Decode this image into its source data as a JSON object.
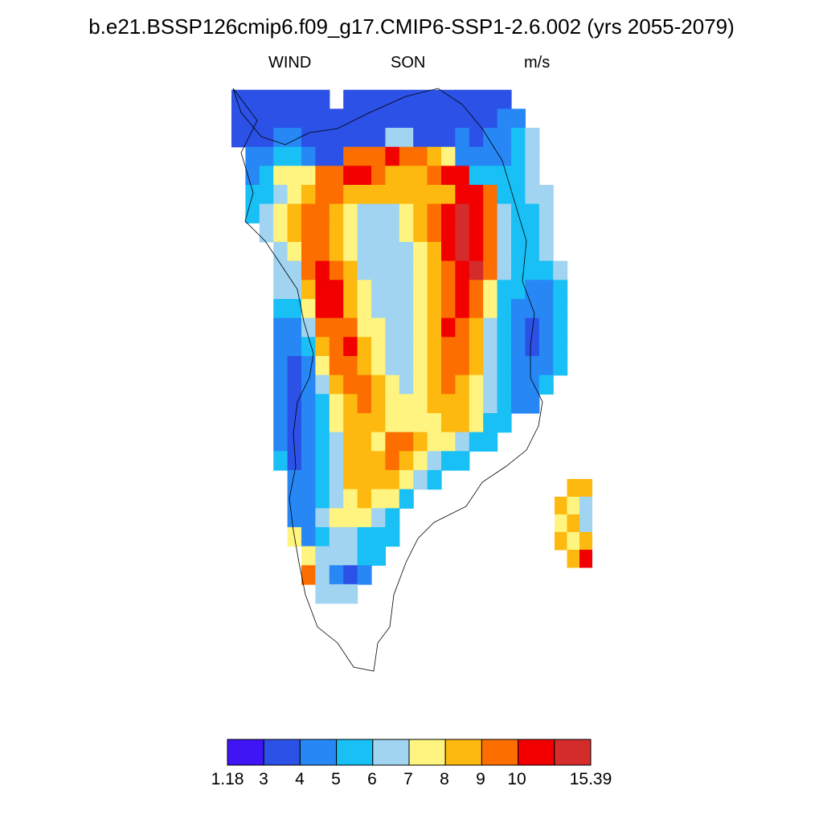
{
  "title": "b.e21.BSSP126cmip6.f09_g17.CMIP6-SSP1-2.6.002 (yrs 2055-2079)",
  "subtitle": {
    "variable": "WIND",
    "season": "SON",
    "units": "m/s"
  },
  "legend": {
    "colors": [
      "#3f14f5",
      "#2b51e6",
      "#2787f5",
      "#18c0f6",
      "#a0d4f0",
      "#fff47f",
      "#fdb90f",
      "#fc6e00",
      "#f20000",
      "#d42b2b"
    ],
    "labels": [
      "1.18",
      "3",
      "4",
      "5",
      "6",
      "7",
      "8",
      "9",
      "10",
      "15.39"
    ]
  },
  "map": {
    "region": "Greenland",
    "field_rows_note": "Each row: [class index per column] where -1 = no data; class index maps to legend.colors",
    "rows": [
      [
        -1,
        -1,
        -1,
        -1,
        -1,
        -1,
        -1,
        -1,
        -1,
        -1,
        -1,
        -1,
        -1,
        -1,
        -1,
        -1,
        -1,
        -1,
        -1,
        -1,
        -1,
        -1,
        -1,
        -1,
        -1,
        -1
      ],
      [
        1,
        1,
        1,
        1,
        1,
        1,
        1,
        -1,
        1,
        1,
        1,
        1,
        1,
        1,
        1,
        1,
        1,
        1,
        1,
        1,
        -1,
        -1,
        -1,
        -1,
        -1,
        -1
      ],
      [
        1,
        1,
        1,
        1,
        1,
        1,
        1,
        1,
        1,
        1,
        1,
        1,
        1,
        1,
        1,
        1,
        1,
        1,
        1,
        2,
        2,
        -1,
        -1,
        -1,
        -1,
        -1
      ],
      [
        1,
        1,
        1,
        2,
        2,
        1,
        1,
        1,
        1,
        1,
        1,
        4,
        4,
        1,
        1,
        1,
        2,
        1,
        2,
        2,
        3,
        4,
        -1,
        -1,
        -1,
        -1
      ],
      [
        -1,
        2,
        2,
        3,
        3,
        2,
        1,
        1,
        7,
        7,
        7,
        8,
        7,
        7,
        6,
        5,
        2,
        2,
        2,
        2,
        3,
        4,
        -1,
        -1,
        -1,
        -1
      ],
      [
        -1,
        2,
        3,
        5,
        5,
        5,
        7,
        7,
        8,
        8,
        7,
        6,
        6,
        6,
        7,
        8,
        8,
        3,
        3,
        3,
        3,
        4,
        -1,
        -1,
        -1,
        -1
      ],
      [
        -1,
        3,
        3,
        4,
        5,
        6,
        7,
        7,
        6,
        6,
        6,
        6,
        6,
        6,
        6,
        6,
        8,
        8,
        7,
        3,
        3,
        4,
        4,
        -1,
        -1,
        -1
      ],
      [
        -1,
        3,
        4,
        5,
        6,
        7,
        7,
        6,
        5,
        4,
        4,
        4,
        5,
        6,
        7,
        8,
        9,
        8,
        7,
        4,
        3,
        3,
        4,
        -1,
        -1,
        -1
      ],
      [
        -1,
        -1,
        4,
        5,
        6,
        7,
        7,
        6,
        5,
        4,
        4,
        4,
        5,
        6,
        7,
        8,
        9,
        8,
        7,
        4,
        3,
        3,
        4,
        -1,
        -1,
        -1
      ],
      [
        -1,
        -1,
        -1,
        4,
        5,
        7,
        7,
        6,
        5,
        4,
        4,
        4,
        4,
        5,
        6,
        8,
        9,
        8,
        7,
        4,
        3,
        3,
        4,
        -1,
        -1,
        -1
      ],
      [
        -1,
        -1,
        -1,
        4,
        4,
        7,
        8,
        7,
        6,
        4,
        4,
        4,
        4,
        5,
        6,
        7,
        8,
        9,
        7,
        4,
        3,
        3,
        3,
        4,
        -1,
        -1
      ],
      [
        -1,
        -1,
        -1,
        4,
        4,
        6,
        8,
        8,
        6,
        5,
        4,
        4,
        4,
        5,
        6,
        7,
        8,
        7,
        5,
        3,
        3,
        2,
        2,
        3,
        -1,
        -1
      ],
      [
        -1,
        -1,
        -1,
        3,
        3,
        5,
        8,
        8,
        6,
        5,
        4,
        4,
        4,
        5,
        6,
        7,
        8,
        7,
        5,
        3,
        2,
        2,
        2,
        3,
        -1,
        -1
      ],
      [
        -1,
        -1,
        -1,
        2,
        2,
        4,
        7,
        7,
        7,
        5,
        5,
        4,
        4,
        5,
        6,
        8,
        7,
        6,
        4,
        3,
        2,
        1,
        2,
        3,
        -1,
        -1
      ],
      [
        -1,
        -1,
        -1,
        2,
        2,
        3,
        6,
        7,
        8,
        6,
        5,
        4,
        4,
        5,
        6,
        7,
        7,
        6,
        4,
        3,
        2,
        1,
        2,
        3,
        -1,
        -1
      ],
      [
        -1,
        -1,
        -1,
        2,
        1,
        2,
        5,
        7,
        7,
        6,
        5,
        4,
        4,
        5,
        6,
        7,
        7,
        6,
        4,
        3,
        2,
        2,
        2,
        3,
        -1,
        -1
      ],
      [
        -1,
        -1,
        -1,
        2,
        1,
        2,
        4,
        6,
        7,
        7,
        6,
        5,
        4,
        5,
        6,
        7,
        6,
        5,
        4,
        3,
        2,
        2,
        3,
        -1,
        -1,
        -1
      ],
      [
        -1,
        -1,
        -1,
        2,
        1,
        2,
        3,
        5,
        6,
        7,
        6,
        5,
        5,
        5,
        6,
        6,
        6,
        5,
        4,
        3,
        2,
        2,
        -1,
        -1,
        -1,
        -1
      ],
      [
        -1,
        -1,
        -1,
        2,
        1,
        2,
        3,
        5,
        6,
        6,
        6,
        5,
        5,
        5,
        5,
        6,
        6,
        5,
        3,
        3,
        -1,
        -1,
        -1,
        -1,
        -1,
        -1
      ],
      [
        -1,
        -1,
        -1,
        2,
        1,
        2,
        3,
        4,
        6,
        6,
        5,
        7,
        7,
        6,
        5,
        5,
        4,
        3,
        3,
        -1,
        -1,
        -1,
        -1,
        -1,
        -1,
        -1
      ],
      [
        -1,
        -1,
        -1,
        3,
        1,
        2,
        3,
        4,
        6,
        6,
        6,
        7,
        6,
        5,
        4,
        3,
        3,
        -1,
        -1,
        -1,
        -1,
        -1,
        -1,
        -1,
        -1,
        -1
      ],
      [
        -1,
        -1,
        -1,
        -1,
        2,
        2,
        3,
        4,
        6,
        6,
        6,
        6,
        5,
        4,
        3,
        -1,
        -1,
        -1,
        -1,
        -1,
        -1,
        -1,
        -1,
        -1,
        -1,
        -1
      ],
      [
        -1,
        -1,
        -1,
        -1,
        2,
        2,
        3,
        4,
        5,
        6,
        5,
        5,
        3,
        -1,
        -1,
        -1,
        -1,
        -1,
        -1,
        -1,
        -1,
        -1,
        -1,
        -1,
        -1,
        -1
      ],
      [
        -1,
        -1,
        -1,
        -1,
        2,
        2,
        4,
        5,
        5,
        5,
        4,
        3,
        -1,
        -1,
        -1,
        -1,
        -1,
        -1,
        -1,
        -1,
        -1,
        -1,
        -1,
        -1,
        -1,
        -1
      ],
      [
        -1,
        -1,
        -1,
        -1,
        5,
        2,
        3,
        4,
        4,
        3,
        3,
        3,
        -1,
        -1,
        -1,
        -1,
        -1,
        -1,
        -1,
        -1,
        -1,
        -1,
        -1,
        -1,
        -1,
        -1
      ],
      [
        -1,
        -1,
        -1,
        -1,
        -1,
        5,
        4,
        4,
        4,
        3,
        3,
        -1,
        -1,
        -1,
        -1,
        -1,
        -1,
        -1,
        -1,
        -1,
        -1,
        -1,
        -1,
        -1,
        -1,
        -1
      ],
      [
        -1,
        -1,
        -1,
        -1,
        -1,
        7,
        4,
        2,
        1,
        2,
        -1,
        -1,
        -1,
        -1,
        -1,
        -1,
        -1,
        -1,
        -1,
        -1,
        -1,
        -1,
        -1,
        -1,
        -1,
        -1
      ],
      [
        -1,
        -1,
        -1,
        -1,
        -1,
        -1,
        4,
        4,
        4,
        -1,
        -1,
        -1,
        -1,
        -1,
        -1,
        -1,
        -1,
        -1,
        -1,
        -1,
        -1,
        -1,
        -1,
        -1,
        -1,
        -1
      ]
    ],
    "island_rows": [
      [
        -1,
        6,
        6
      ],
      [
        6,
        5,
        4
      ],
      [
        5,
        6,
        4
      ],
      [
        6,
        5,
        6
      ],
      [
        -1,
        6,
        8
      ]
    ]
  }
}
